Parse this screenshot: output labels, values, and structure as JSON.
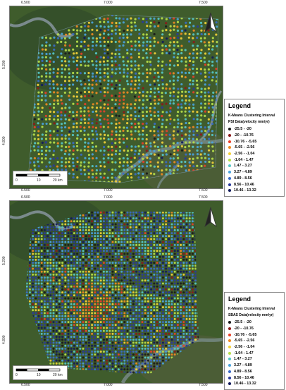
{
  "maps": [
    {
      "legend": {
        "title": "Legend",
        "heading_line1": "K-Means Clustering Interval",
        "heading_line2": "PSI Data(velocity mm/yr)",
        "items": [
          {
            "label": "-25.5 - -20",
            "color": "#1a1a1a"
          },
          {
            "label": "-20 - -10.76",
            "color": "#8b1a1a"
          },
          {
            "label": "-10.76 - -5.65",
            "color": "#e8402a"
          },
          {
            "label": "-5.65 - -2.56",
            "color": "#f08a24"
          },
          {
            "label": "-2.56 - -1.04",
            "color": "#f4d23a"
          },
          {
            "label": "-1.04 - 1.47",
            "color": "#b7e04a"
          },
          {
            "label": "1.47 - 3.27",
            "color": "#56c8c8"
          },
          {
            "label": "3.27 - 4.89",
            "color": "#4aa3de"
          },
          {
            "label": "4.89 - 8.56",
            "color": "#3a6cc8"
          },
          {
            "label": "8.56 - 10.46",
            "color": "#2a3a9c"
          },
          {
            "label": "10.46 - 13.32",
            "color": "#111a5c"
          }
        ]
      },
      "ticks_top": [
        "6.500",
        "7.000",
        "7.500"
      ],
      "ticks_bottom": [
        "6.500",
        "7.000",
        "7.500"
      ],
      "ticks_left": [
        "5.200",
        "4.800"
      ],
      "scale": [
        "0",
        "10",
        "20 km"
      ]
    },
    {
      "legend": {
        "title": "Legend",
        "heading_line1": "K-Means Clustering Interval",
        "heading_line2": "SBAS Data(velocity mm/yr)",
        "items": [
          {
            "label": "-25.5 - -20",
            "color": "#1a1a1a"
          },
          {
            "label": "-20 - -10.76",
            "color": "#8b1a1a"
          },
          {
            "label": "-10.76 - -5.65",
            "color": "#e8402a"
          },
          {
            "label": "-5.65 - -2.56",
            "color": "#f08a24"
          },
          {
            "label": "-2.56 - -1.04",
            "color": "#f4d23a"
          },
          {
            "label": "-1.04 - 1.47",
            "color": "#b7e04a"
          },
          {
            "label": "1.47 - 3.27",
            "color": "#56c8c8"
          },
          {
            "label": "3.27 - 4.89",
            "color": "#4aa3de"
          },
          {
            "label": "4.89 - 8.56",
            "color": "#3a6cc8"
          },
          {
            "label": "8.56 - 10.46",
            "color": "#2a3a9c"
          },
          {
            "label": "10.46 - 13.32",
            "color": "#111a5c"
          }
        ]
      },
      "ticks_top": [
        "6.500",
        "7.000",
        "7.500"
      ],
      "ticks_bottom": [
        "6.500",
        "7.000",
        "7.500"
      ],
      "ticks_left": [
        "5.200",
        "4.800"
      ],
      "scale": [
        "0",
        "10",
        "20 km"
      ]
    }
  ]
}
